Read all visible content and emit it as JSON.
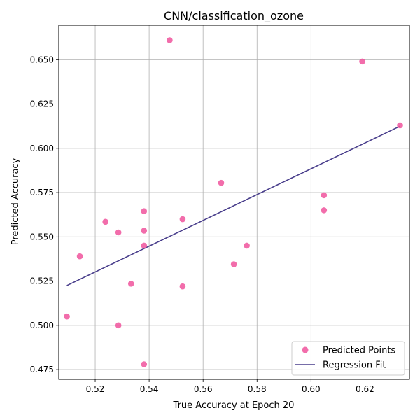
{
  "chart_data": {
    "type": "scatter",
    "title": "CNN/classification_ozone",
    "xlabel": "True Accuracy at Epoch 20",
    "ylabel": "Predicted Accuracy",
    "xlim": [
      0.5065,
      0.6365
    ],
    "ylim": [
      0.4695,
      0.6695
    ],
    "xticks": [
      0.52,
      0.54,
      0.56,
      0.58,
      0.6,
      0.62
    ],
    "xtick_labels": [
      "0.52",
      "0.54",
      "0.56",
      "0.58",
      "0.60",
      "0.62"
    ],
    "yticks": [
      0.475,
      0.5,
      0.525,
      0.55,
      0.575,
      0.6,
      0.625,
      0.65
    ],
    "ytick_labels": [
      "0.475",
      "0.500",
      "0.525",
      "0.550",
      "0.575",
      "0.600",
      "0.625",
      "0.650"
    ],
    "grid": true,
    "legend_position": "lower-right",
    "series": [
      {
        "name": "Predicted Points",
        "kind": "scatter",
        "color": "#f0549c",
        "points": [
          [
            0.5476,
            0.661
          ],
          [
            0.619,
            0.649
          ],
          [
            0.633,
            0.613
          ],
          [
            0.5667,
            0.5805
          ],
          [
            0.6048,
            0.5735
          ],
          [
            0.6048,
            0.565
          ],
          [
            0.5381,
            0.5645
          ],
          [
            0.5524,
            0.56
          ],
          [
            0.5238,
            0.5585
          ],
          [
            0.5381,
            0.5535
          ],
          [
            0.5286,
            0.5525
          ],
          [
            0.5381,
            0.545
          ],
          [
            0.5762,
            0.545
          ],
          [
            0.5143,
            0.539
          ],
          [
            0.5714,
            0.5345
          ],
          [
            0.5333,
            0.5235
          ],
          [
            0.5524,
            0.522
          ],
          [
            0.5095,
            0.505
          ],
          [
            0.5286,
            0.5
          ],
          [
            0.5381,
            0.478
          ]
        ]
      },
      {
        "name": "Regression Fit",
        "kind": "line",
        "color": "#483d8b",
        "points": [
          [
            0.5095,
            0.5225
          ],
          [
            0.633,
            0.6125
          ]
        ]
      }
    ]
  }
}
